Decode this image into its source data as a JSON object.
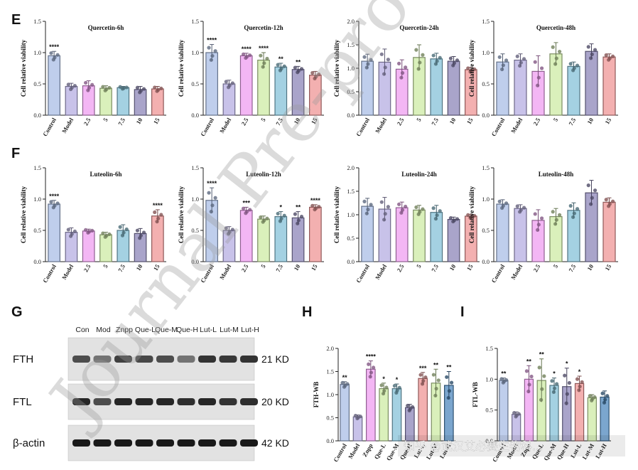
{
  "panels": [
    {
      "letter": "E"
    },
    {
      "letter": "F"
    },
    {
      "letter": "G"
    },
    {
      "letter": "H"
    },
    {
      "letter": "I"
    }
  ],
  "watermark_overlay": "Journal Pre-proof",
  "watermark_corner": "知乎 @武汉艾必赛生物科...",
  "colors": {
    "treatment_palette": [
      "#a9bee6",
      "#b6aee2",
      "#ef9ef0",
      "#cdeba4",
      "#86c2d8",
      "#8c86b8",
      "#ef9595"
    ],
    "wb_palette": [
      "#a9bee6",
      "#b6aee2",
      "#ef9ef0",
      "#cdeba4",
      "#86c2d8",
      "#8c86b8",
      "#ef9595",
      "#cdeba4",
      "#4f88bd"
    ]
  },
  "chart_data": [
    {
      "id": "q6",
      "type": "bar",
      "title": "Quercetin-6h",
      "ylabel": "Cell relative viability",
      "categories": [
        "Control",
        "Model",
        "2.5",
        "5",
        "7.5",
        "10",
        "15"
      ],
      "values": [
        0.95,
        0.46,
        0.47,
        0.43,
        0.44,
        0.41,
        0.42
      ],
      "errors": [
        0.07,
        0.05,
        0.08,
        0.04,
        0.02,
        0.05,
        0.04
      ],
      "sig": [
        "****",
        "",
        "",
        "",
        "",
        "",
        ""
      ],
      "ylim": [
        0,
        1.5
      ],
      "yticks": [
        "0.0",
        "0.5",
        "1.0",
        "1.5"
      ]
    },
    {
      "id": "q12",
      "type": "bar",
      "title": "Quercetin-12h",
      "ylabel": "Cell relative viability",
      "categories": [
        "Control",
        "Model",
        "2.5",
        "5",
        "7.5",
        "10",
        "15"
      ],
      "values": [
        1.0,
        0.5,
        0.95,
        0.88,
        0.77,
        0.73,
        0.64
      ],
      "errors": [
        0.13,
        0.06,
        0.04,
        0.12,
        0.06,
        0.05,
        0.06
      ],
      "sig": [
        "****",
        "",
        "****",
        "****",
        "**",
        "**",
        ""
      ],
      "ylim": [
        0,
        1.5
      ],
      "yticks": [
        "0.0",
        "0.5",
        "1.0",
        "1.5"
      ]
    },
    {
      "id": "q24",
      "type": "bar",
      "title": "Quercetin-24h",
      "ylabel": "Cell relative viability",
      "categories": [
        "Control",
        "Model",
        "2.5",
        "5",
        "7.5",
        "10",
        "15"
      ],
      "values": [
        1.15,
        1.13,
        0.98,
        1.23,
        1.2,
        1.15,
        0.97
      ],
      "errors": [
        0.15,
        0.28,
        0.2,
        0.27,
        0.12,
        0.1,
        0.05
      ],
      "sig": [
        "",
        "",
        "",
        "",
        "",
        "",
        ""
      ],
      "ylim": [
        0,
        2.0
      ],
      "yticks": [
        "0.0",
        "0.5",
        "1.0",
        "1.5",
        "2.0"
      ]
    },
    {
      "id": "q48",
      "type": "bar",
      "title": "Quercetin-48h",
      "ylabel": "Cell relative viability",
      "categories": [
        "Control",
        "Model",
        "2.5",
        "5",
        "7.5",
        "10",
        "15"
      ],
      "values": [
        0.85,
        0.88,
        0.7,
        0.98,
        0.78,
        1.02,
        0.93
      ],
      "errors": [
        0.13,
        0.1,
        0.25,
        0.18,
        0.07,
        0.12,
        0.05
      ],
      "sig": [
        "",
        "",
        "",
        "",
        "",
        "",
        ""
      ],
      "ylim": [
        0,
        1.5
      ],
      "yticks": [
        "0.0",
        "0.5",
        "1.0",
        "1.5"
      ]
    },
    {
      "id": "l6",
      "type": "bar",
      "title": "Luteolin-6h",
      "ylabel": "Cell relative viability",
      "categories": [
        "Control",
        "Model",
        "2.5",
        "5",
        "7.5",
        "10",
        "15"
      ],
      "values": [
        0.92,
        0.47,
        0.49,
        0.43,
        0.5,
        0.45,
        0.73
      ],
      "errors": [
        0.06,
        0.07,
        0.03,
        0.04,
        0.09,
        0.08,
        0.1
      ],
      "sig": [
        "****",
        "",
        "",
        "",
        "",
        "",
        "****"
      ],
      "ylim": [
        0,
        1.5
      ],
      "yticks": [
        "0.0",
        "0.5",
        "1.0",
        "1.5"
      ]
    },
    {
      "id": "l12",
      "type": "bar",
      "title": "Luteolin-12h",
      "ylabel": "Cell relative viability",
      "categories": [
        "Control",
        "Model",
        "2.5",
        "5",
        "7.5",
        "10",
        "15"
      ],
      "values": [
        0.98,
        0.5,
        0.82,
        0.68,
        0.72,
        0.7,
        0.87
      ],
      "errors": [
        0.2,
        0.06,
        0.05,
        0.05,
        0.08,
        0.1,
        0.04
      ],
      "sig": [
        "****",
        "",
        "***",
        "",
        "*",
        "**",
        "****"
      ],
      "ylim": [
        0,
        1.5
      ],
      "yticks": [
        "0.0",
        "0.5",
        "1.0",
        "1.5"
      ]
    },
    {
      "id": "l24",
      "type": "bar",
      "title": "Luteolin-24h",
      "ylabel": "Cell relative viability",
      "categories": [
        "Control",
        "Model",
        "2.5",
        "5",
        "7.5",
        "10",
        "15"
      ],
      "values": [
        1.18,
        1.12,
        1.15,
        1.1,
        1.05,
        0.9,
        0.97
      ],
      "errors": [
        0.17,
        0.25,
        0.12,
        0.1,
        0.15,
        0.05,
        0.04
      ],
      "sig": [
        "",
        "",
        "",
        "",
        "",
        "",
        ""
      ],
      "ylim": [
        0,
        2.0
      ],
      "yticks": [
        "0.0",
        "0.5",
        "1.0",
        "1.5",
        "2.0"
      ]
    },
    {
      "id": "l48",
      "type": "bar",
      "title": "Luteolin-48h",
      "ylabel": "Cell relative viability",
      "categories": [
        "Control",
        "Model",
        "2.5",
        "5",
        "7.5",
        "10",
        "15"
      ],
      "values": [
        0.92,
        0.85,
        0.66,
        0.72,
        0.82,
        1.1,
        0.95
      ],
      "errors": [
        0.07,
        0.06,
        0.17,
        0.13,
        0.12,
        0.2,
        0.07
      ],
      "sig": [
        "",
        "",
        "",
        "",
        "",
        "",
        ""
      ],
      "ylim": [
        0,
        1.5
      ],
      "yticks": [
        "0.0",
        "0.5",
        "1.0",
        "1.5"
      ]
    },
    {
      "id": "h",
      "type": "bar",
      "title": "",
      "ylabel": "FTH-WB",
      "categories": [
        "Control",
        "Model",
        "Znpp",
        "Que-L",
        "Que-M",
        "Que-H",
        "Lut-L",
        "Lut-M",
        "Lut-H"
      ],
      "values": [
        1.22,
        0.52,
        1.55,
        1.13,
        1.13,
        0.72,
        1.35,
        1.25,
        1.2
      ],
      "errors": [
        0.06,
        0.04,
        0.18,
        0.12,
        0.1,
        0.07,
        0.13,
        0.3,
        0.3
      ],
      "sig": [
        "**",
        "",
        "****",
        "*",
        "*",
        "",
        "***",
        "**",
        "**"
      ],
      "ylim": [
        0,
        2.0
      ],
      "yticks": [
        "0.0",
        "0.5",
        "1.0",
        "1.5",
        "2.0"
      ]
    },
    {
      "id": "i",
      "type": "bar",
      "title": "",
      "ylabel": "FTL-WB",
      "categories": [
        "Control",
        "Model",
        "Znpp",
        "Que-L",
        "Que-M",
        "Que-H",
        "Lut-L",
        "Lut-M",
        "Lut-H"
      ],
      "values": [
        0.98,
        0.43,
        1.0,
        0.98,
        0.9,
        0.88,
        0.93,
        0.7,
        0.71
      ],
      "errors": [
        0.04,
        0.04,
        0.22,
        0.35,
        0.12,
        0.3,
        0.12,
        0.05,
        0.1
      ],
      "sig": [
        "**",
        "",
        "**",
        "**",
        "*",
        "*",
        "*",
        "",
        ""
      ],
      "ylim": [
        0,
        1.5
      ],
      "yticks": [
        "0.0",
        "0.5",
        "1.0",
        "1.5"
      ]
    }
  ],
  "western_blot": {
    "lanes": [
      "Con",
      "Mod",
      "Znpp",
      "Que-L",
      "Que-M",
      "Que-H",
      "Lut-L",
      "Lut-M",
      "Lut-H"
    ],
    "rows": [
      {
        "label": "FTH",
        "kd": "21 KD",
        "intensity": [
          0.7,
          0.55,
          0.75,
          0.72,
          0.7,
          0.55,
          0.8,
          0.78,
          0.8
        ]
      },
      {
        "label": "FTL",
        "kd": "20 KD",
        "intensity": [
          0.85,
          0.7,
          0.85,
          0.85,
          0.85,
          0.82,
          0.85,
          0.8,
          0.82
        ]
      },
      {
        "label": "β-actin",
        "kd": "42 KD",
        "intensity": [
          0.9,
          0.9,
          0.9,
          0.9,
          0.9,
          0.9,
          0.9,
          0.9,
          0.9
        ]
      }
    ]
  }
}
